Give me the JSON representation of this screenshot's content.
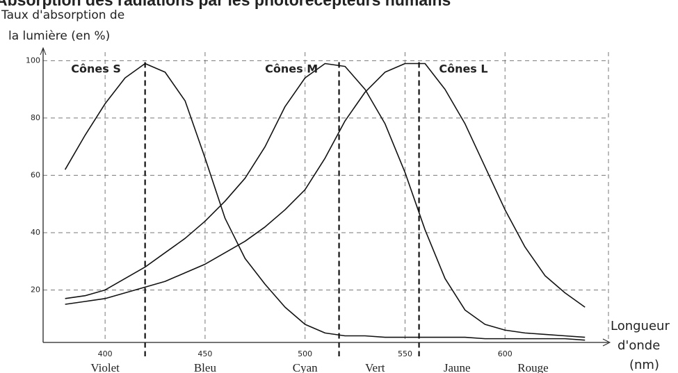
{
  "chart_data": {
    "type": "line",
    "title": "Absorption des radiations par les photorécepteurs humains",
    "y_label_lines": [
      "Taux d'absorption de",
      "la lumière (en %)"
    ],
    "x_label_lines": [
      "Longueur",
      "d'onde",
      "(nm)"
    ],
    "x": [
      380,
      390,
      400,
      410,
      420,
      430,
      440,
      450,
      460,
      470,
      480,
      490,
      500,
      510,
      520,
      530,
      540,
      550,
      560,
      570,
      580,
      590,
      600,
      610,
      620,
      630,
      640
    ],
    "series": [
      {
        "name": "Cônes S",
        "color": "#111111",
        "label_x": 383,
        "label_y": 97,
        "values": [
          62,
          74,
          85,
          94,
          99,
          96,
          86,
          66,
          45,
          31,
          22,
          14,
          8,
          5,
          4,
          4,
          3.5,
          3.5,
          3.5,
          3.5,
          3.5,
          3,
          3,
          3,
          3,
          3,
          2.5
        ]
      },
      {
        "name": "Cônes M",
        "color": "#111111",
        "label_x": 480,
        "label_y": 97,
        "values": [
          17,
          18,
          20,
          24,
          28,
          33,
          38,
          44,
          51,
          59,
          70,
          84,
          94,
          99,
          98,
          90,
          78,
          61,
          41,
          24,
          13,
          8,
          6,
          5,
          4.5,
          4,
          3.5
        ]
      },
      {
        "name": "Cônes L",
        "color": "#111111",
        "label_x": 567,
        "label_y": 97,
        "values": [
          15,
          16,
          17,
          19,
          21,
          23,
          26,
          29,
          33,
          37,
          42,
          48,
          55,
          66,
          79,
          89,
          96,
          99,
          99,
          90,
          78,
          63,
          48,
          35,
          25,
          19,
          14
        ]
      }
    ],
    "peak_lines": [
      420,
      517,
      557
    ],
    "color_bands": [
      {
        "label": "Violet",
        "x": 400
      },
      {
        "label": "Bleu",
        "x": 450
      },
      {
        "label": "Cyan",
        "x": 500
      },
      {
        "label": "Vert",
        "x": 535
      },
      {
        "label": "Jaune",
        "x": 576
      },
      {
        "label": "Rouge",
        "x": 614
      }
    ],
    "xlim": [
      369,
      650
    ],
    "ylim": [
      0,
      103
    ],
    "xticks": [
      400,
      450,
      500,
      550,
      600
    ],
    "yticks": [
      20,
      40,
      60,
      80,
      100
    ],
    "grid": true
  }
}
